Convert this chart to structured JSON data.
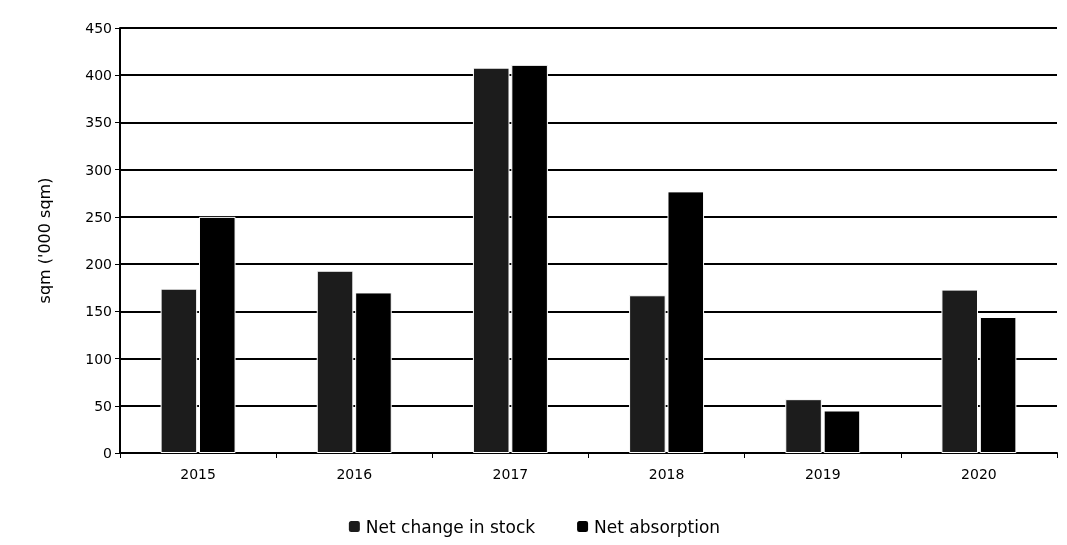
{
  "chart_data": {
    "type": "bar",
    "ylabel": "sqm ('000 sqm)",
    "categories": [
      "2015",
      "2016",
      "2017",
      "2018",
      "2019",
      "2020"
    ],
    "series": [
      {
        "name": "Net change in stock",
        "color": "#1c1c1c",
        "values": [
          174,
          193,
          408,
          167,
          57,
          173
        ]
      },
      {
        "name": "Net absorption",
        "color": "#000000",
        "values": [
          250,
          170,
          411,
          277,
          45,
          144
        ]
      }
    ],
    "ylim": [
      0,
      450
    ],
    "yticks": [
      0,
      50,
      100,
      150,
      200,
      250,
      300,
      350,
      400,
      450
    ],
    "grid": "y",
    "legend": "bottom"
  }
}
